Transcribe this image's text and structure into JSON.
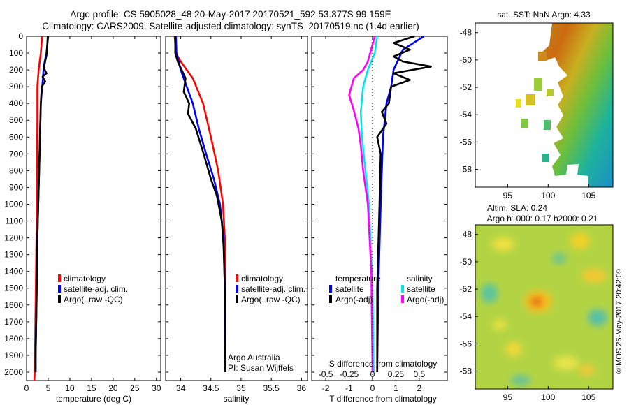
{
  "title_line1": "Argo profile: CS 5905028_48 20-May-2017 20170521_592 53.377S 99.159E",
  "title_line2": "Climatology: CARS2009. Satellite-adjusted climatology: synTS_20170519.nc (1.4d earlier)",
  "colors": {
    "climatology": "#ff0000",
    "satellite": "#0000ff",
    "argo": "#000000",
    "sat_salinity": "#00e5ee",
    "argo_salinity": "#ff00ff"
  },
  "chart_data": [
    {
      "type": "line",
      "panel": "temperature",
      "xlabel": "temperature (deg C)",
      "xlim": [
        0,
        31
      ],
      "xticks": [
        0,
        5,
        10,
        15,
        20,
        25,
        30
      ],
      "ylim": [
        0,
        2050
      ],
      "yticks": [
        0,
        100,
        200,
        300,
        400,
        500,
        600,
        700,
        800,
        900,
        1000,
        1100,
        1200,
        1300,
        1400,
        1500,
        1600,
        1700,
        1800,
        1900,
        2000
      ],
      "legend": [
        "climatology",
        "satellite-adj. clim.",
        "Argo(..raw -QC)"
      ],
      "series": [
        {
          "name": "climatology",
          "color": "#ff0000",
          "points": [
            [
              3.6,
              0
            ],
            [
              3.3,
              100
            ],
            [
              2.8,
              200
            ],
            [
              2.5,
              300
            ],
            [
              2.5,
              500
            ],
            [
              2.4,
              800
            ],
            [
              2.3,
              1200
            ],
            [
              2.1,
              1600
            ],
            [
              1.9,
              2000
            ],
            [
              1.8,
              2050
            ]
          ]
        },
        {
          "name": "satellite-adj. clim.",
          "color": "#0000ff",
          "points": [
            [
              5.0,
              0
            ],
            [
              4.8,
              50
            ],
            [
              4.6,
              100
            ],
            [
              4.2,
              150
            ],
            [
              3.9,
              200
            ],
            [
              3.8,
              250
            ],
            [
              3.6,
              300
            ],
            [
              3.3,
              400
            ],
            [
              3.1,
              600
            ],
            [
              2.9,
              800
            ],
            [
              2.7,
              1000
            ],
            [
              2.5,
              1200
            ],
            [
              2.3,
              1600
            ],
            [
              2.1,
              1900
            ],
            [
              2.1,
              2000
            ]
          ]
        },
        {
          "name": "Argo(..raw -QC)",
          "color": "#000000",
          "points": [
            [
              4.9,
              0
            ],
            [
              4.7,
              100
            ],
            [
              4.3,
              150
            ],
            [
              4.0,
              190
            ],
            [
              4.6,
              220
            ],
            [
              3.7,
              240
            ],
            [
              4.3,
              270
            ],
            [
              3.5,
              300
            ],
            [
              3.3,
              400
            ],
            [
              3.1,
              600
            ],
            [
              2.9,
              800
            ],
            [
              2.7,
              1000
            ],
            [
              2.5,
              1200
            ],
            [
              2.3,
              1600
            ],
            [
              2.1,
              1900
            ],
            [
              2.1,
              2000
            ]
          ]
        }
      ]
    },
    {
      "type": "line",
      "panel": "salinity",
      "xlabel": "salinity",
      "xlim": [
        33.75,
        36.1
      ],
      "xticks": [
        34,
        34.5,
        35,
        35.5,
        36
      ],
      "xticklabels": [
        "34",
        "34.5",
        "35",
        "35.5",
        "36"
      ],
      "ylim": [
        0,
        2050
      ],
      "legend": [
        "climatology",
        "satellite-adj. clim.",
        "Argo(..raw -QC)"
      ],
      "annotation": [
        "Argo Australia",
        "PI: Susan Wijffels"
      ],
      "series": [
        {
          "name": "climatology",
          "color": "#ff0000",
          "points": [
            [
              33.9,
              0
            ],
            [
              33.92,
              100
            ],
            [
              34.0,
              150
            ],
            [
              34.2,
              250
            ],
            [
              34.37,
              400
            ],
            [
              34.5,
              600
            ],
            [
              34.62,
              800
            ],
            [
              34.7,
              1000
            ],
            [
              34.73,
              1200
            ],
            [
              34.74,
              1500
            ],
            [
              34.74,
              2000
            ]
          ]
        },
        {
          "name": "satellite-adj. clim.",
          "color": "#0000ff",
          "points": [
            [
              33.92,
              0
            ],
            [
              33.93,
              100
            ],
            [
              34.0,
              200
            ],
            [
              34.1,
              300
            ],
            [
              34.2,
              400
            ],
            [
              34.3,
              550
            ],
            [
              34.42,
              700
            ],
            [
              34.55,
              850
            ],
            [
              34.65,
              1000
            ],
            [
              34.71,
              1200
            ],
            [
              34.73,
              1500
            ],
            [
              34.74,
              2000
            ]
          ]
        },
        {
          "name": "Argo(..raw -QC)",
          "color": "#000000",
          "points": [
            [
              33.91,
              0
            ],
            [
              33.91,
              100
            ],
            [
              33.95,
              150
            ],
            [
              34.08,
              250
            ],
            [
              34.05,
              330
            ],
            [
              34.14,
              400
            ],
            [
              34.12,
              460
            ],
            [
              34.25,
              550
            ],
            [
              34.38,
              700
            ],
            [
              34.5,
              850
            ],
            [
              34.6,
              950
            ],
            [
              34.68,
              1100
            ],
            [
              34.71,
              1250
            ],
            [
              34.73,
              1500
            ],
            [
              34.74,
              2000
            ]
          ]
        }
      ]
    },
    {
      "type": "line",
      "panel": "difference",
      "xlabel": "T difference from climatology",
      "xlabel_top": "S difference from climatology",
      "xlim": [
        -2.6,
        3.2
      ],
      "xticks": [
        -2,
        -1,
        0,
        1,
        2
      ],
      "top_xticklabels": [
        "-0.5",
        "-0.25",
        "0",
        "0.25",
        "0.5"
      ],
      "ylim": [
        0,
        2050
      ],
      "legend_temperature_heading": "temperature",
      "legend_salinity_heading": "salinity",
      "legend_temperature": [
        "satellite",
        "Argo(-adj)"
      ],
      "legend_salinity": [
        "satellite",
        "Argo(-adj)"
      ],
      "series": [
        {
          "name": "temperature satellite",
          "color": "#0000ff",
          "points": [
            [
              2.2,
              0
            ],
            [
              1.3,
              80
            ],
            [
              0.9,
              200
            ],
            [
              0.8,
              300
            ],
            [
              0.6,
              400
            ],
            [
              0.45,
              600
            ],
            [
              0.35,
              1000
            ],
            [
              0.25,
              1500
            ],
            [
              0.2,
              2000
            ]
          ]
        },
        {
          "name": "temperature Argo(-adj)",
          "color": "#000000",
          "points": [
            [
              1.8,
              0
            ],
            [
              0.9,
              40
            ],
            [
              1.6,
              80
            ],
            [
              0.9,
              120
            ],
            [
              1.3,
              150
            ],
            [
              2.5,
              180
            ],
            [
              0.9,
              220
            ],
            [
              1.6,
              260
            ],
            [
              0.8,
              300
            ],
            [
              0.7,
              400
            ],
            [
              0.4,
              450
            ],
            [
              0.6,
              520
            ],
            [
              0.2,
              600
            ],
            [
              0.35,
              700
            ],
            [
              0.3,
              1000
            ],
            [
              0.2,
              1500
            ],
            [
              0.2,
              2000
            ]
          ]
        },
        {
          "name": "salinity satellite",
          "color": "#00e5ee",
          "points": [
            [
              0.2,
              0
            ],
            [
              0.1,
              100
            ],
            [
              -0.2,
              200
            ],
            [
              -0.4,
              300
            ],
            [
              -0.5,
              450
            ],
            [
              -0.45,
              600
            ],
            [
              -0.3,
              800
            ],
            [
              -0.15,
              1000
            ],
            [
              0.0,
              1500
            ],
            [
              0.05,
              2000
            ]
          ]
        },
        {
          "name": "salinity Argo(-adj)",
          "color": "#ff00ff",
          "points": [
            [
              0.1,
              0
            ],
            [
              -0.2,
              150
            ],
            [
              -0.4,
              200
            ],
            [
              -0.8,
              250
            ],
            [
              -1.0,
              350
            ],
            [
              -0.8,
              440
            ],
            [
              -0.6,
              550
            ],
            [
              -0.5,
              650
            ],
            [
              -0.4,
              800
            ],
            [
              -0.2,
              1000
            ],
            [
              -0.05,
              1400
            ],
            [
              0.0,
              2000
            ]
          ]
        }
      ]
    }
  ],
  "maps": [
    {
      "title": "sat. SST: NaN Argo: 4.33",
      "xticks": [
        95,
        100,
        105
      ],
      "yticks": [
        -48,
        -50,
        -52,
        -54,
        -56,
        -58
      ],
      "xlim": [
        91,
        108
      ],
      "ylim": [
        -59.3,
        -47.3
      ]
    },
    {
      "title_line1": "Altim. SLA: 0.24",
      "title_line2": "Argo h1000: 0.17 h2000: 0.21",
      "xticks": [
        95,
        100,
        105
      ],
      "yticks": [
        -48,
        -50,
        -52,
        -54,
        -56,
        -58
      ],
      "xlim": [
        91,
        108
      ],
      "ylim": [
        -59.3,
        -47.3
      ]
    }
  ],
  "timestamp": "©IMOS 26-May-2017 20:42:09"
}
